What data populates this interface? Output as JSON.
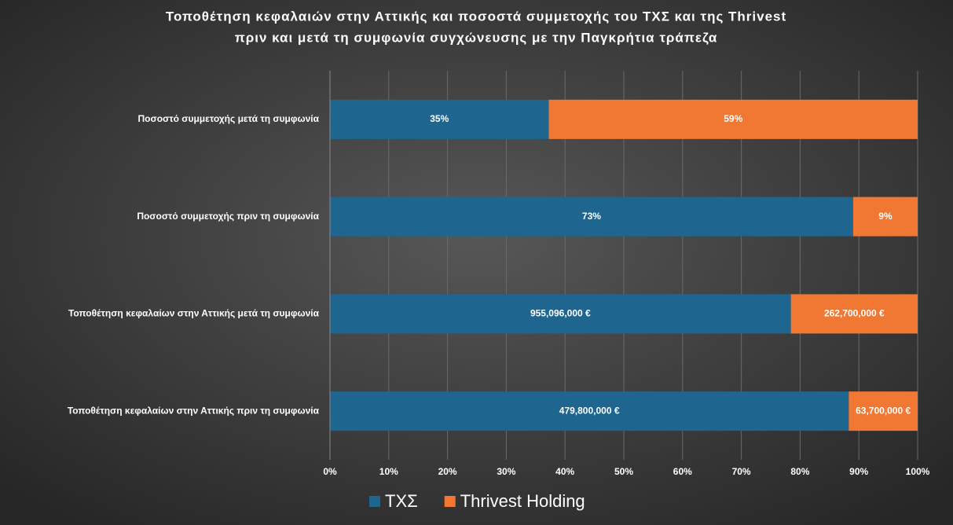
{
  "chart_data": {
    "type": "bar100",
    "orientation": "horizontal",
    "title": [
      "Τοποθέτηση κεφαλαιών στην Αττικής και ποσοστά συμμετοχής του ΤΧΣ και της Thrivest",
      "πριν και μετά τη συμφωνία συγχώνευσης με την Παγκρήτια τράπεζα"
    ],
    "categories": [
      "Ποσοστό συμμετοχής μετά τη συμφωνία",
      "Ποσοστό συμμετοχής πριν τη συμφωνία",
      "Τοποθέτηση κεφαλαίων στην Αττικής μετά τη συμφωνία",
      "Τοποθέτηση κεφαλαίων στην Αττικής πριν τη συμφωνία"
    ],
    "series": [
      {
        "name": "ΤΧΣ",
        "color": "#1e6690",
        "values": [
          35,
          73,
          955096000,
          479800000
        ],
        "value_labels": [
          "35%",
          "73%",
          "955,096,000 €",
          "479,800,000 €"
        ]
      },
      {
        "name": "Thrivest Holding",
        "color": "#f07833",
        "values": [
          59,
          9,
          262700000,
          63700000
        ],
        "value_labels": [
          "59%",
          "9%",
          "262,700,000 €",
          "63,700,000 €"
        ]
      }
    ],
    "xlim": [
      0,
      100
    ],
    "xticks": [
      {
        "value": 0,
        "label": "0%"
      },
      {
        "value": 10,
        "label": "10%"
      },
      {
        "value": 20,
        "label": "20%"
      },
      {
        "value": 30,
        "label": "30%"
      },
      {
        "value": 40,
        "label": "40%"
      },
      {
        "value": 50,
        "label": "50%"
      },
      {
        "value": 60,
        "label": "60%"
      },
      {
        "value": 70,
        "label": "70%"
      },
      {
        "value": 80,
        "label": "80%"
      },
      {
        "value": 90,
        "label": "90%"
      },
      {
        "value": 100,
        "label": "100%"
      }
    ],
    "grid": true,
    "legend": "bottom"
  }
}
